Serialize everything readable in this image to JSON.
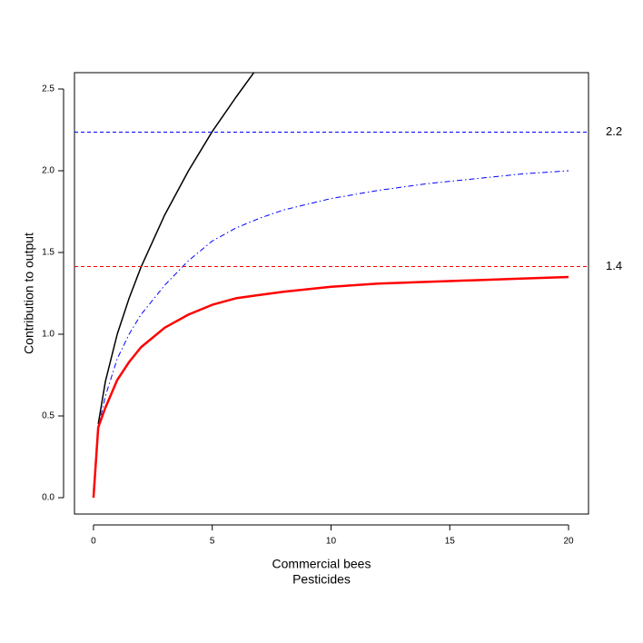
{
  "chart_data": {
    "type": "line",
    "xlabel": [
      "Commercial bees",
      "Pesticides"
    ],
    "ylabel": "Contribution to output",
    "x": [
      0,
      0.2,
      0.5,
      1,
      1.5,
      2,
      3,
      4,
      5,
      6,
      7,
      8,
      10,
      12,
      14,
      16,
      18,
      20
    ],
    "series": [
      {
        "color": "#000000",
        "dash": "solid",
        "linewidth": 1.5,
        "values": [
          null,
          0.45,
          0.71,
          1.0,
          1.22,
          1.41,
          1.73,
          2.0,
          2.24,
          2.45,
          2.65,
          null,
          null,
          null,
          null,
          null,
          null,
          null
        ]
      },
      {
        "color": "#0000ff",
        "dash": "dashdot",
        "linewidth": 1,
        "values": [
          null,
          0.43,
          0.62,
          0.85,
          1.0,
          1.12,
          1.3,
          1.45,
          1.57,
          1.65,
          1.71,
          1.76,
          1.83,
          1.88,
          1.92,
          1.95,
          1.98,
          2.0
        ]
      },
      {
        "color": "#ff0000",
        "dash": "solid",
        "linewidth": 2.5,
        "values": [
          0,
          0.43,
          0.55,
          0.72,
          0.83,
          0.92,
          1.04,
          1.12,
          1.18,
          1.22,
          1.24,
          1.26,
          1.29,
          1.31,
          1.32,
          1.33,
          1.34,
          1.35
        ]
      }
    ],
    "reference_lines": [
      {
        "value": 2.236,
        "label": "2.2",
        "color": "#0000ff"
      },
      {
        "value": 1.414,
        "label": "1.4",
        "color": "#ff0000"
      }
    ],
    "xlim": [
      -0.8,
      20.84
    ],
    "ylim": [
      -0.1,
      2.6
    ],
    "xticks": [
      0,
      5,
      10,
      15,
      20
    ],
    "yticks": [
      {
        "value": 0,
        "label": "0.0"
      },
      {
        "value": 0.5,
        "label": "0.5"
      },
      {
        "value": 1,
        "label": "1.0"
      },
      {
        "value": 1.5,
        "label": "1.5"
      },
      {
        "value": 2,
        "label": "2.0"
      },
      {
        "value": 2.5,
        "label": "2.5"
      }
    ]
  }
}
